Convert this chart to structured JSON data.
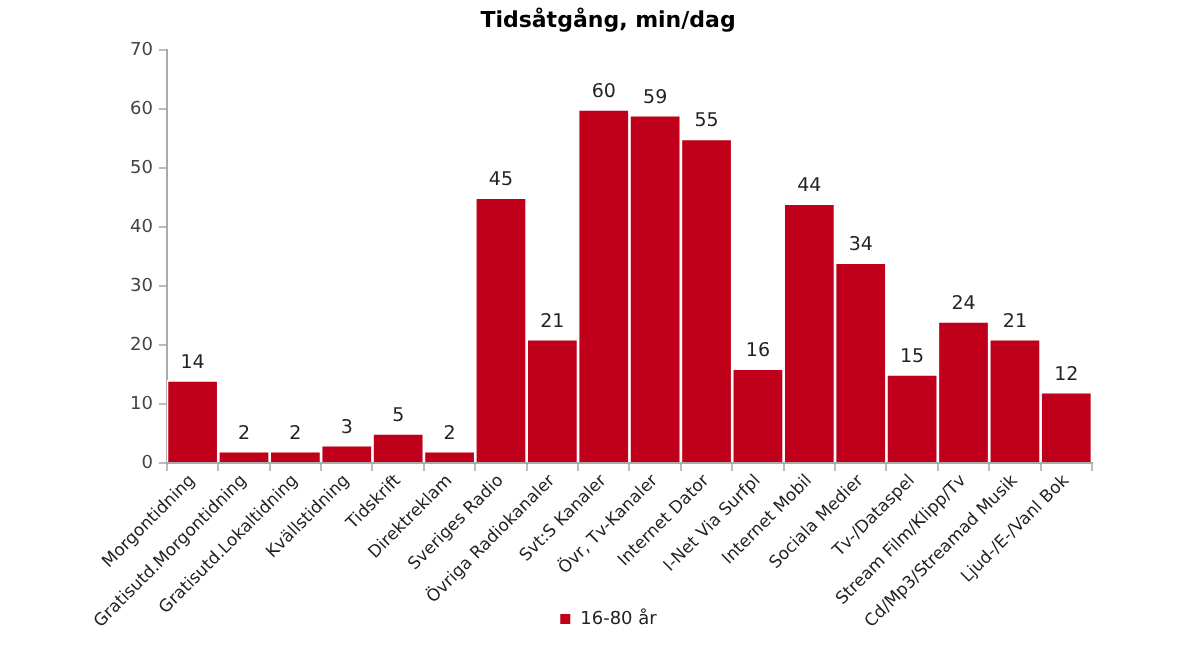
{
  "chart_data": {
    "type": "bar",
    "title": "Tidsåtgång, min/dag",
    "categories": [
      "Morgontidning",
      "Gratisutd.Morgontidning",
      "Gratisutd.Lokaltidning",
      "Kvällstidning",
      "Tidskrift",
      "Direktreklam",
      "Sveriges Radio",
      "Övriga Radiokanaler",
      "Svt:S Kanaler",
      "Övr, Tv-Kanaler",
      "Internet Dator",
      "I-Net Via Surfpl",
      "Internet Mobil",
      "Sociala Medier",
      "Tv-/Dataspel",
      "Stream Film/Klipp/Tv",
      "Cd/Mp3/Streamad Musik",
      "Ljud-/E-/Vanl Bok"
    ],
    "series": [
      {
        "name": "16-80 år",
        "color": "#c0001a",
        "values": [
          14,
          2,
          2,
          3,
          5,
          2,
          45,
          21,
          60,
          59,
          55,
          16,
          44,
          34,
          15,
          24,
          21,
          12
        ]
      }
    ],
    "ylim": [
      0,
      70
    ],
    "yticks": [
      0,
      10,
      20,
      30,
      40,
      50,
      60,
      70
    ],
    "grid": false,
    "legend": "bottom",
    "data_labels": true
  }
}
